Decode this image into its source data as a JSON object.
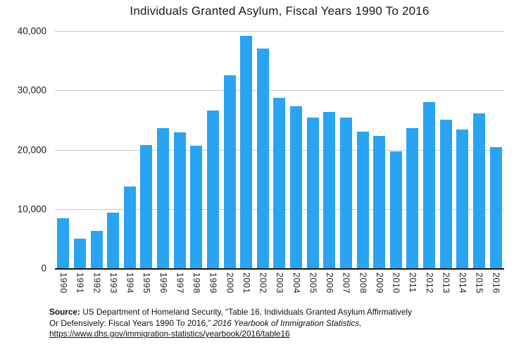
{
  "title": "Individuals Granted Asylum, Fiscal Years 1990 To 2016",
  "colors": {
    "bar": "#29a4f2",
    "gridline": "#c9c9c9",
    "axis": "#111111",
    "title_text": "#1a1a1a",
    "tick_text": "#222222",
    "source_text": "#111111"
  },
  "chart_data": {
    "type": "bar",
    "title": "Individuals Granted Asylum, Fiscal Years 1990 To 2016",
    "xlabel": "",
    "ylabel": "",
    "categories": [
      "1990",
      "1991",
      "1992",
      "1993",
      "1994",
      "1995",
      "1996",
      "1997",
      "1998",
      "1999",
      "2000",
      "2001",
      "2002",
      "2003",
      "2004",
      "2005",
      "2006",
      "2007",
      "2008",
      "2009",
      "2010",
      "2011",
      "2012",
      "2013",
      "2014",
      "2015",
      "2016"
    ],
    "values": [
      8472,
      5035,
      6307,
      9414,
      13798,
      20716,
      23668,
      22939,
      20610,
      26578,
      32532,
      39219,
      36984,
      28776,
      27358,
      25409,
      26337,
      25408,
      23045,
      22348,
      19737,
      23669,
      28026,
      25008,
      23374,
      26124,
      20455
    ],
    "ylim": [
      0,
      40000
    ],
    "y_ticks": [
      {
        "value": 0,
        "label": "0"
      },
      {
        "value": 10000,
        "label": "10,000"
      },
      {
        "value": 20000,
        "label": "20,000"
      },
      {
        "value": 30000,
        "label": "30,000"
      },
      {
        "value": 40000,
        "label": "40,000"
      }
    ],
    "grid": "horizontal",
    "legend": "none",
    "bar_color": "#29a4f2"
  },
  "source": {
    "label": "Source:",
    "line1_rest": "US Department of Homeland Security, “Table 16. Individuals Granted Asylum Affirmatively",
    "line2_plain": "Or Defensively: Fiscal Years 1990 To 2016,” ",
    "line2_italic": "2016 Yearbook of Immigration Statistics,",
    "link": "https://www.dhs.gov/immigration-statistics/yearbook/2016/table16"
  }
}
